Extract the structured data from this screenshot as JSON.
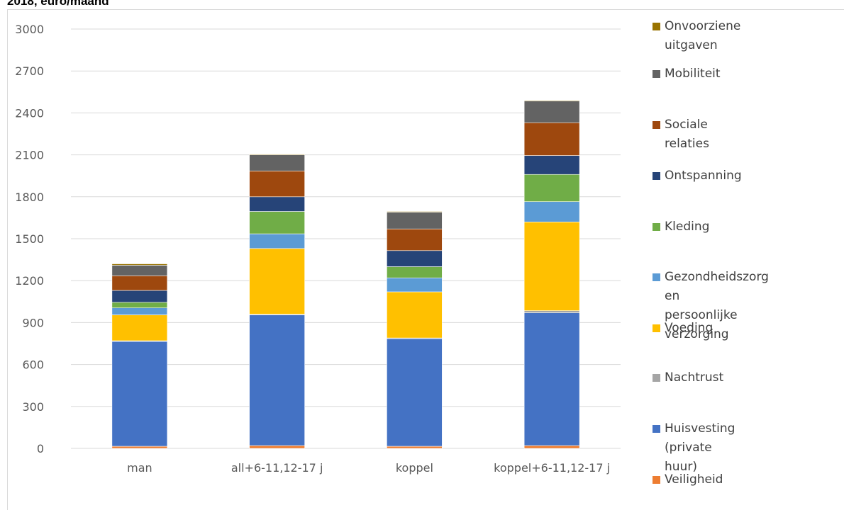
{
  "header": {
    "partial_title": "2018, euro/maand"
  },
  "chart_data": {
    "type": "bar",
    "stacked": true,
    "categories": [
      "man",
      "all+6-11,12-17 j",
      "koppel",
      "koppel+6-11,12-17 j"
    ],
    "ylim": [
      0,
      3000
    ],
    "yticks": [
      0,
      300,
      600,
      900,
      1200,
      1500,
      1800,
      2100,
      2400,
      2700,
      3000
    ],
    "grid": true,
    "legend_position": "right",
    "series": [
      {
        "name": "Veiligheid",
        "color": "#ed7d31",
        "values": [
          15,
          20,
          15,
          20
        ]
      },
      {
        "name": "Huisvesting (private huur)",
        "color": "#4472c4",
        "values": [
          750,
          935,
          770,
          950
        ]
      },
      {
        "name": "Nachtrust",
        "color": "#a5a5a5",
        "values": [
          5,
          5,
          5,
          15
        ]
      },
      {
        "name": "Voeding",
        "color": "#ffc000",
        "values": [
          185,
          470,
          330,
          635
        ]
      },
      {
        "name": "Gezondheidszorg en\npersoonlijke verzorging",
        "color": "#5b9bd5",
        "values": [
          50,
          105,
          100,
          145
        ]
      },
      {
        "name": "Kleding",
        "color": "#70ad47",
        "values": [
          40,
          160,
          80,
          195
        ]
      },
      {
        "name": "Ontspanning",
        "color": "#264478",
        "values": [
          85,
          105,
          115,
          135
        ]
      },
      {
        "name": "Sociale\nrelaties",
        "color": "#9e480e",
        "values": [
          105,
          185,
          155,
          235
        ]
      },
      {
        "name": "Mobiliteit",
        "color": "#636363",
        "values": [
          75,
          115,
          120,
          155
        ]
      },
      {
        "name": "Onvoorziene\nuitgaven",
        "color": "#997300",
        "values": [
          10,
          5,
          5,
          5
        ]
      }
    ]
  }
}
